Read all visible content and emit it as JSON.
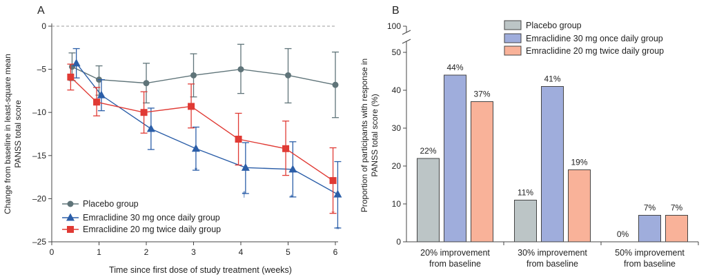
{
  "chart_data": [
    {
      "panel": "A",
      "type": "line",
      "xlabel": "Time since first dose of study treatment (weeks)",
      "ylabel_lines": [
        "Change from baseline in least-square mean",
        "PANSS total score"
      ],
      "xlim": [
        0,
        6
      ],
      "ylim": [
        -25,
        0
      ],
      "x_ticks": [
        0,
        1,
        2,
        3,
        4,
        5,
        6
      ],
      "y_ticks": [
        0,
        -5,
        -10,
        -15,
        -20,
        -25
      ],
      "y_tick_labels": [
        "0",
        "–5",
        "–10",
        "–15",
        "–20",
        "–25"
      ],
      "baseline_dashed_at": 0,
      "series": [
        {
          "name": "Placebo group",
          "color": "#5f7479",
          "marker": "circle",
          "points": [
            {
              "x": 0.43,
              "y": -4.7,
              "lo": -6.3,
              "hi": -3.1
            },
            {
              "x": 1.0,
              "y": -6.2,
              "lo": -8.0,
              "hi": -4.6
            },
            {
              "x": 2.0,
              "y": -6.6,
              "lo": -8.9,
              "hi": -4.3
            },
            {
              "x": 3.0,
              "y": -5.7,
              "lo": -8.2,
              "hi": -3.2
            },
            {
              "x": 4.0,
              "y": -5.0,
              "lo": -7.8,
              "hi": -2.1
            },
            {
              "x": 5.0,
              "y": -5.7,
              "lo": -8.9,
              "hi": -2.6
            },
            {
              "x": 6.0,
              "y": -6.8,
              "lo": -10.6,
              "hi": -3.0
            }
          ]
        },
        {
          "name": "Emraclidine 30 mg once daily group",
          "color": "#2b5ea8",
          "marker": "triangle",
          "points": [
            {
              "x": 0.52,
              "y": -4.3,
              "lo": -6.0,
              "hi": -2.6
            },
            {
              "x": 1.05,
              "y": -8.0,
              "lo": -9.8,
              "hi": -6.2
            },
            {
              "x": 2.1,
              "y": -11.9,
              "lo": -14.3,
              "hi": -9.5
            },
            {
              "x": 3.05,
              "y": -14.2,
              "lo": -16.7,
              "hi": -11.7
            },
            {
              "x": 4.1,
              "y": -16.4,
              "lo": -19.4,
              "hi": -13.5
            },
            {
              "x": 5.1,
              "y": -16.6,
              "lo": -19.8,
              "hi": -13.4
            },
            {
              "x": 6.05,
              "y": -19.5,
              "lo": -23.4,
              "hi": -15.7
            }
          ]
        },
        {
          "name": "Emraclidine 20 mg twice daily group",
          "color": "#e03a34",
          "marker": "square",
          "points": [
            {
              "x": 0.4,
              "y": -5.9,
              "lo": -7.4,
              "hi": -4.4
            },
            {
              "x": 0.95,
              "y": -8.8,
              "lo": -10.4,
              "hi": -7.1
            },
            {
              "x": 1.95,
              "y": -10.0,
              "lo": -12.4,
              "hi": -7.6
            },
            {
              "x": 2.95,
              "y": -9.3,
              "lo": -11.8,
              "hi": -6.7
            },
            {
              "x": 3.95,
              "y": -13.1,
              "lo": -16.1,
              "hi": -10.1
            },
            {
              "x": 4.95,
              "y": -14.2,
              "lo": -17.3,
              "hi": -11.0
            },
            {
              "x": 5.95,
              "y": -17.9,
              "lo": -21.7,
              "hi": -14.1
            }
          ]
        }
      ],
      "annotations": [
        {
          "x": 3.05,
          "y": -17.0,
          "text": "*",
          "series": 1
        },
        {
          "x": 4.07,
          "y": -19.8,
          "text": "†",
          "series": 1
        },
        {
          "x": 5.07,
          "y": -20.2,
          "text": "*",
          "series": 1
        },
        {
          "x": 5.95,
          "y": -22.1,
          "text": "*",
          "series": 2
        },
        {
          "x": 6.05,
          "y": -23.9,
          "text": "*",
          "series": 1
        }
      ]
    },
    {
      "panel": "B",
      "type": "bar",
      "ylabel_lines": [
        "Proportion of participants with response in",
        "PANSS total score (%)"
      ],
      "ylim": [
        0,
        50
      ],
      "axis_break_top_label": "100",
      "y_ticks": [
        0,
        10,
        20,
        30,
        40,
        50
      ],
      "categories": [
        [
          "20% improvement",
          "from baseline"
        ],
        [
          "30% improvement",
          "from baseline"
        ],
        [
          "50% improvement",
          "from baseline"
        ]
      ],
      "series": [
        {
          "name": "Placebo group",
          "color": "#bcc5c6",
          "values": [
            22,
            11,
            0
          ],
          "labels": [
            "22%",
            "11%",
            "0%"
          ]
        },
        {
          "name": "Emraclidine 30 mg once daily group",
          "color": "#9faddc",
          "values": [
            44,
            41,
            7
          ],
          "labels": [
            "44%",
            "41%",
            "7%"
          ]
        },
        {
          "name": "Emraclidine 20 mg twice daily group",
          "color": "#f9b299",
          "values": [
            37,
            19,
            7
          ],
          "labels": [
            "37%",
            "19%",
            "7%"
          ]
        }
      ]
    }
  ]
}
